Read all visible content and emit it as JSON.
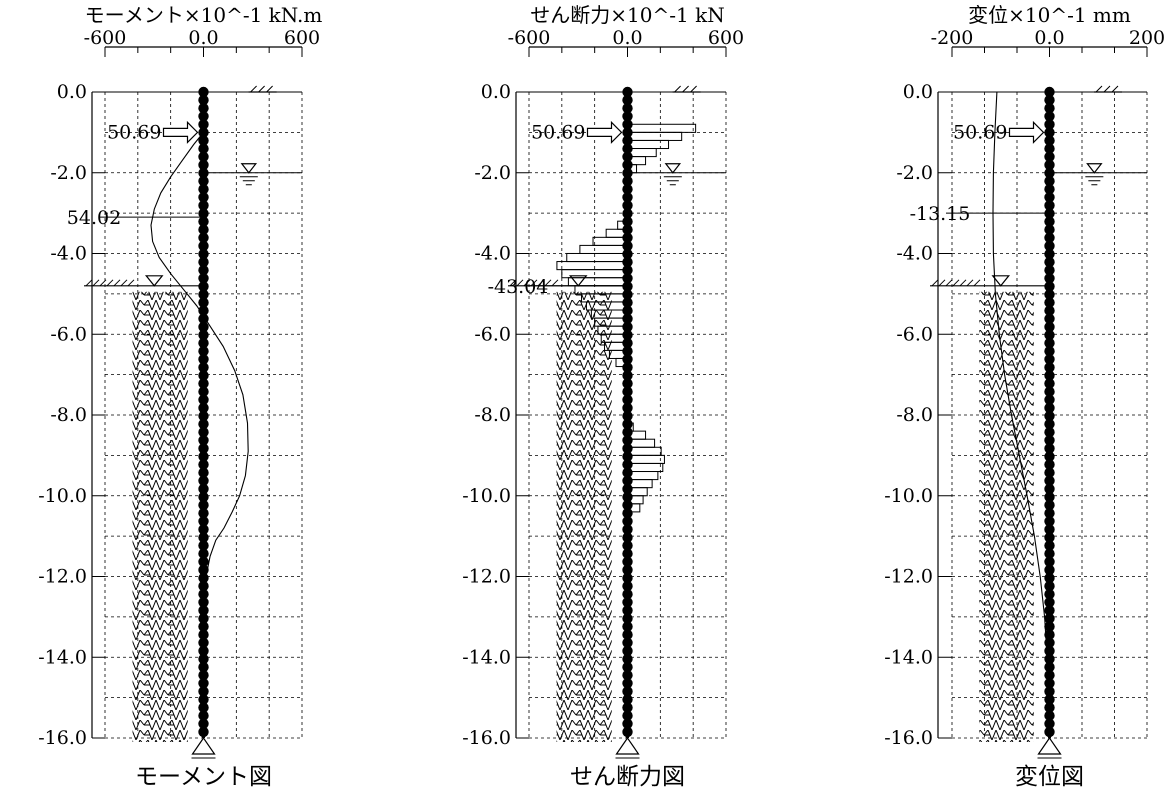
{
  "chart_data": [
    {
      "type": "line",
      "variant": "moment",
      "title": "モーメント×10^-1 kN.m",
      "caption": "モーメント図",
      "xlim": [
        -600,
        600
      ],
      "x_ticks": [
        "-600",
        "0.0",
        "600"
      ],
      "ylim": [
        -16,
        0
      ],
      "y_ticks": [
        "0.0",
        "-2.0",
        "-4.0",
        "-6.0",
        "-8.0",
        "-10.0",
        "-12.0",
        "-14.0",
        "-16.0"
      ],
      "grid": true,
      "annotations": [
        {
          "text": "50.69",
          "kind": "load-arrow",
          "depth": -1.0
        },
        {
          "text": "54.02",
          "kind": "value-label",
          "depth": -3.1
        }
      ],
      "series": [
        {
          "x": [
            0,
            -60,
            -130,
            -200,
            -260,
            -300,
            -320,
            -310,
            -270,
            -200,
            -120,
            -40,
            40,
            120,
            190,
            240,
            268,
            272,
            255,
            220,
            175,
            125,
            75,
            40,
            15,
            5,
            0
          ],
          "y": [
            -1.0,
            -1.3,
            -1.7,
            -2.1,
            -2.5,
            -2.9,
            -3.3,
            -3.7,
            -4.1,
            -4.5,
            -4.9,
            -5.3,
            -5.8,
            -6.3,
            -6.9,
            -7.5,
            -8.2,
            -8.9,
            -9.5,
            -10.0,
            -10.4,
            -10.8,
            -11.1,
            -11.5,
            -12.0,
            -13.0,
            -16.0
          ]
        }
      ]
    },
    {
      "type": "bar",
      "variant": "shear",
      "title": "せん断力×10^-1 kN",
      "caption": "せん断力図",
      "xlim": [
        -600,
        600
      ],
      "x_ticks": [
        "-600",
        "0.0",
        "600"
      ],
      "ylim": [
        -16,
        0
      ],
      "y_ticks": [
        "0.0",
        "-2.0",
        "-4.0",
        "-6.0",
        "-8.0",
        "-10.0",
        "-12.0",
        "-14.0",
        "-16.0"
      ],
      "grid": true,
      "annotations": [
        {
          "text": "50.69",
          "kind": "load-arrow",
          "depth": -1.0
        },
        {
          "text": "-43.04",
          "kind": "value-label",
          "depth": -4.8
        }
      ],
      "series": [
        {
          "x": [
            415,
            330,
            250,
            175,
            110,
            55,
            10,
            -60,
            -130,
            -210,
            -290,
            -370,
            -430,
            -400,
            -360,
            -320,
            -280,
            -250,
            -220,
            -200,
            -180,
            -160,
            -140,
            -110,
            -70,
            35,
            110,
            165,
            205,
            225,
            215,
            185,
            150,
            120,
            95,
            75
          ],
          "y": [
            -1.0,
            -1.2,
            -1.4,
            -1.6,
            -1.8,
            -2.0,
            -2.2,
            -3.4,
            -3.6,
            -3.8,
            -4.0,
            -4.2,
            -4.4,
            -4.6,
            -4.8,
            -5.0,
            -5.2,
            -5.4,
            -5.6,
            -5.8,
            -6.0,
            -6.2,
            -6.4,
            -6.6,
            -6.8,
            -8.4,
            -8.6,
            -8.8,
            -9.0,
            -9.2,
            -9.4,
            -9.6,
            -9.8,
            -10.0,
            -10.2,
            -10.4
          ]
        }
      ]
    },
    {
      "type": "line",
      "variant": "displacement",
      "title": "変位×10^-1 mm",
      "caption": "変位図",
      "xlim": [
        -200,
        200
      ],
      "x_ticks": [
        "-200",
        "0.0",
        "200"
      ],
      "ylim": [
        -16,
        0
      ],
      "y_ticks": [
        "0.0",
        "-2.0",
        "-4.0",
        "-6.0",
        "-8.0",
        "-10.0",
        "-12.0",
        "-14.0",
        "-16.0"
      ],
      "grid": true,
      "annotations": [
        {
          "text": "50.69",
          "kind": "load-arrow",
          "depth": -1.0
        },
        {
          "text": "-13.15",
          "kind": "value-label",
          "depth": -3.0
        }
      ],
      "series": [
        {
          "x": [
            -108,
            -112,
            -115,
            -116,
            -115,
            -111,
            -103,
            -92,
            -78,
            -62,
            -46,
            -31,
            -19,
            -10,
            -5,
            0,
            0
          ],
          "y": [
            0.0,
            -1.0,
            -2.0,
            -3.0,
            -4.0,
            -5.0,
            -6.0,
            -7.0,
            -8.0,
            -9.0,
            -10.0,
            -11.0,
            -12.0,
            -13.0,
            -14.0,
            -15.0,
            -16.0
          ]
        }
      ]
    }
  ]
}
